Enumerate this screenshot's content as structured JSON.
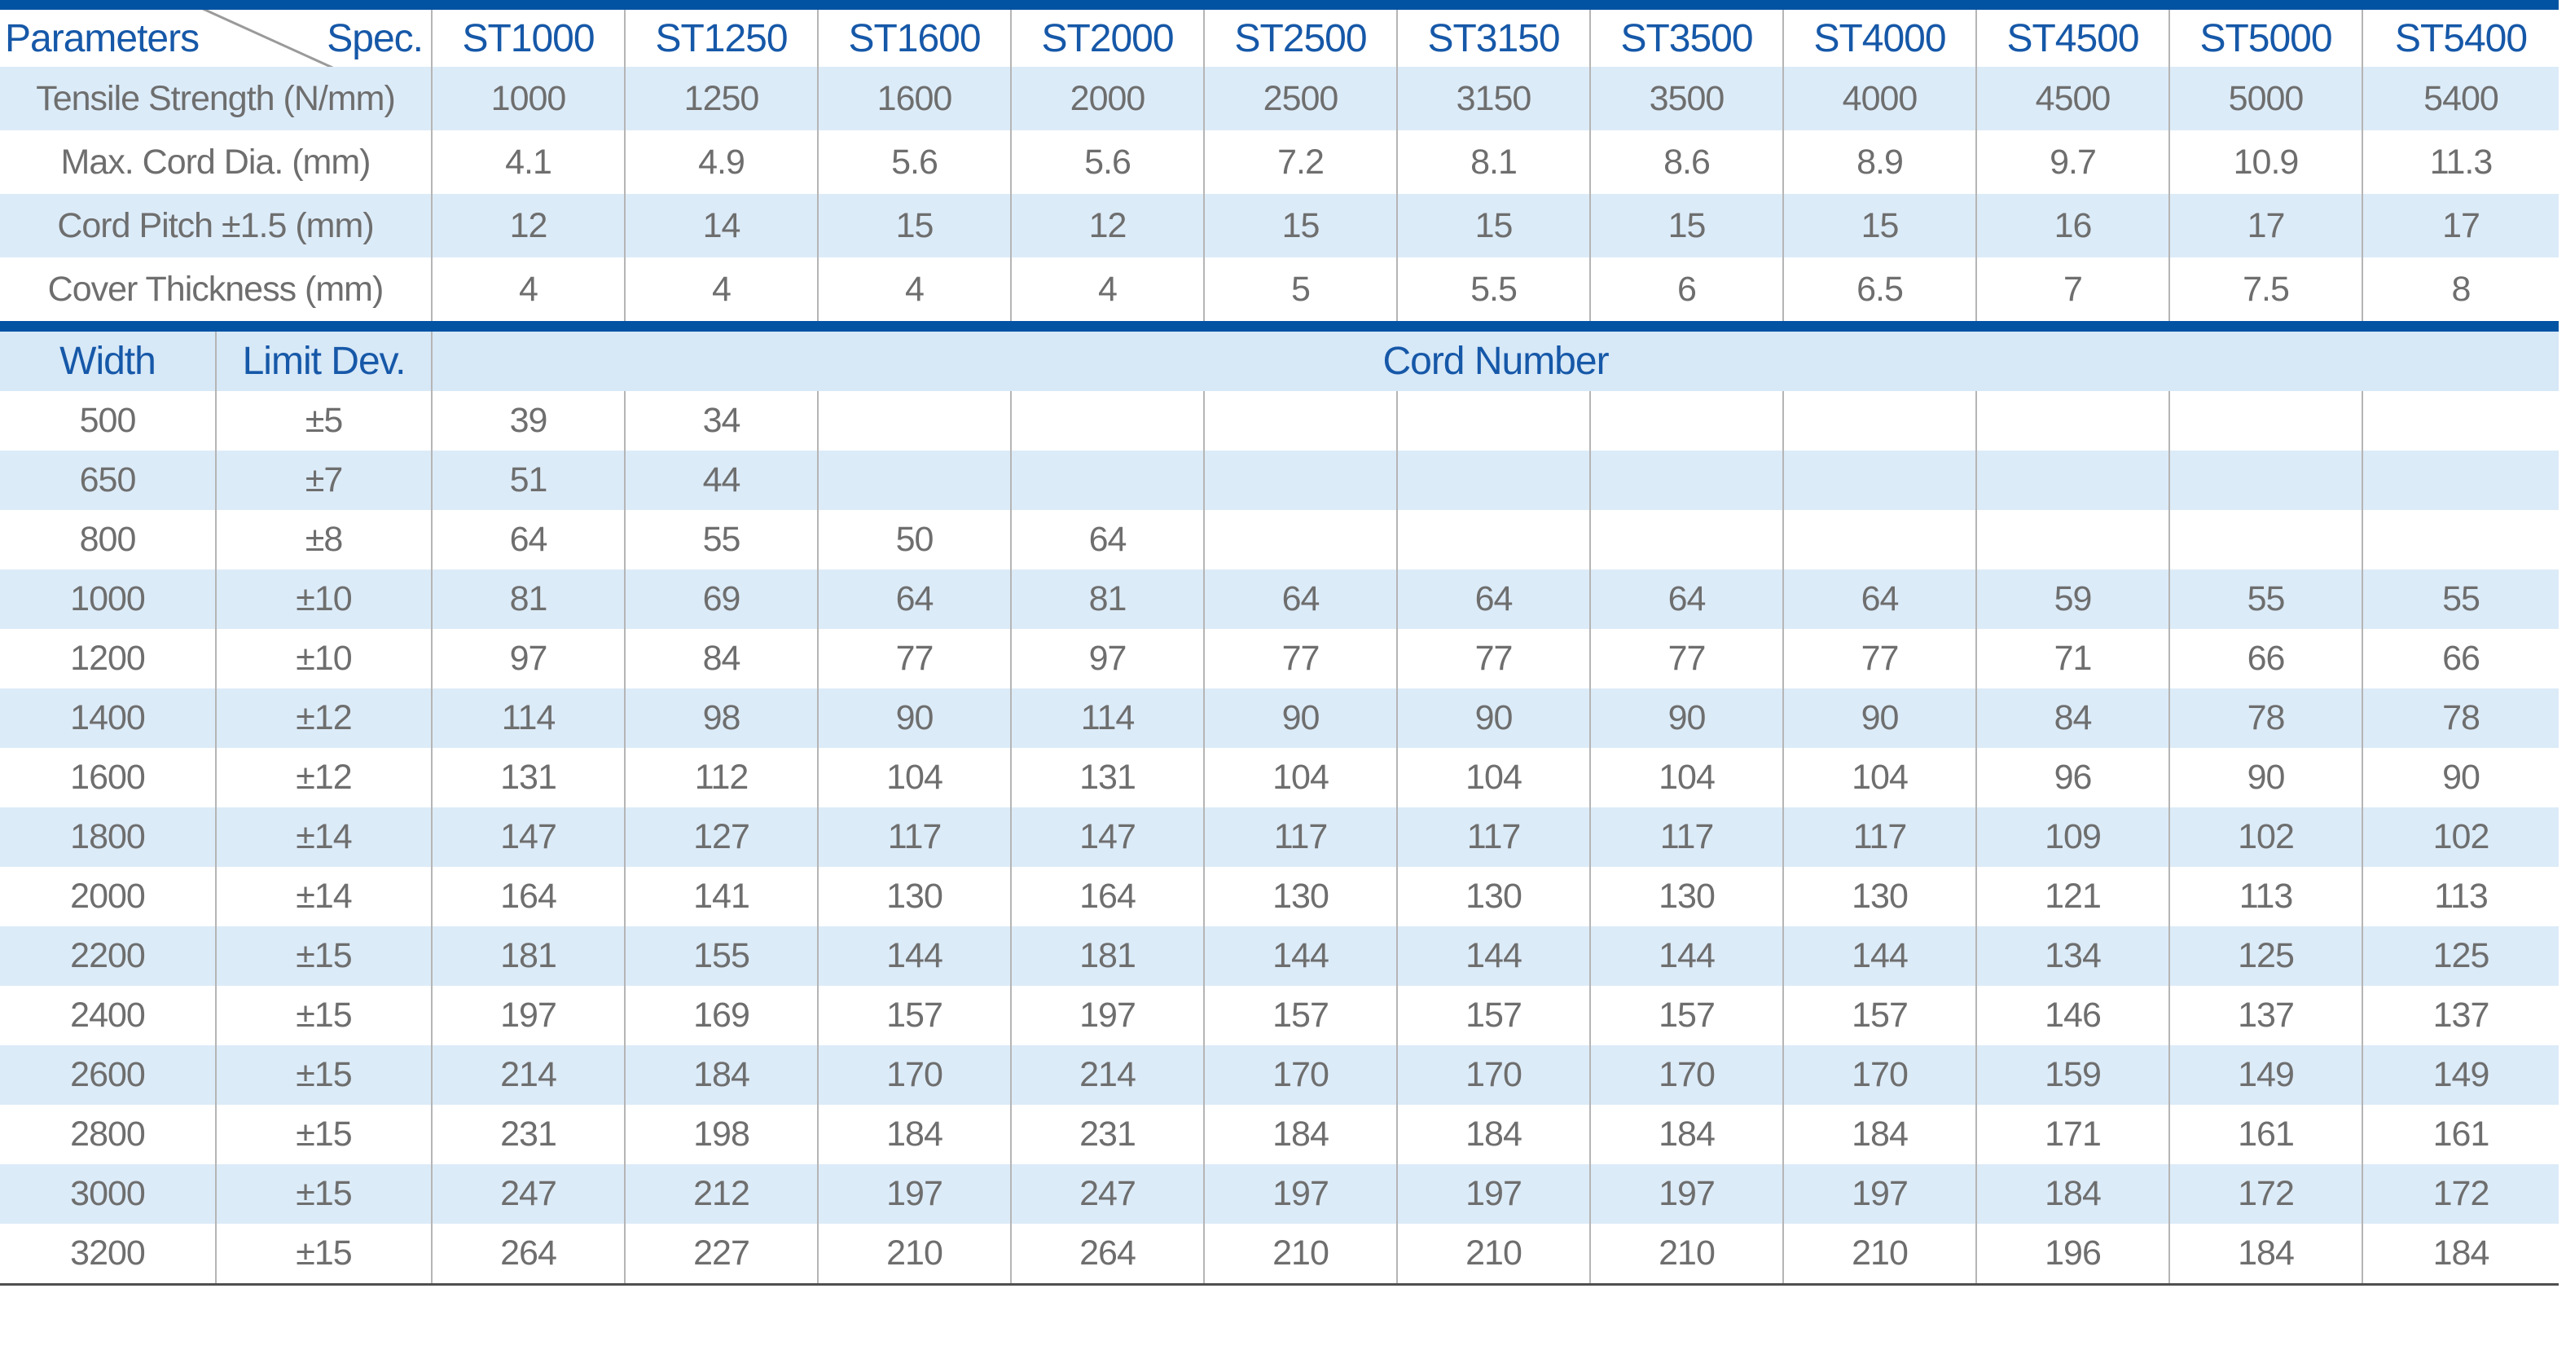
{
  "colors": {
    "bar_blue": "#0353a3",
    "header_text_blue": "#1658a8",
    "row_light_blue": "#dcebf8",
    "body_text_gray": "#6e6e6e",
    "grid_line_gray": "#b5b5b5",
    "bottom_border_gray": "#4f4f4f"
  },
  "spec_table": {
    "corner": {
      "left_label": "Parameters",
      "right_label": "Spec."
    },
    "columns": [
      "ST1000",
      "ST1250",
      "ST1600",
      "ST2000",
      "ST2500",
      "ST3150",
      "ST3500",
      "ST4000",
      "ST4500",
      "ST5000",
      "ST5400"
    ],
    "rows": [
      {
        "label": "Tensile Strength (N/mm)",
        "values": [
          "1000",
          "1250",
          "1600",
          "2000",
          "2500",
          "3150",
          "3500",
          "4000",
          "4500",
          "5000",
          "5400"
        ]
      },
      {
        "label": "Max. Cord Dia. (mm)",
        "values": [
          "4.1",
          "4.9",
          "5.6",
          "5.6",
          "7.2",
          "8.1",
          "8.6",
          "8.9",
          "9.7",
          "10.9",
          "11.3"
        ]
      },
      {
        "label": "Cord Pitch ±1.5 (mm)",
        "values": [
          "12",
          "14",
          "15",
          "12",
          "15",
          "15",
          "15",
          "15",
          "16",
          "17",
          "17"
        ]
      },
      {
        "label": "Cover Thickness (mm)",
        "values": [
          "4",
          "4",
          "4",
          "4",
          "5",
          "5.5",
          "6",
          "6.5",
          "7",
          "7.5",
          "8"
        ]
      }
    ]
  },
  "cord_table": {
    "headers": {
      "width": "Width",
      "limit_dev": "Limit Dev.",
      "cord_number": "Cord Number"
    },
    "rows": [
      {
        "width": "500",
        "limit_dev": "±5",
        "values": [
          "39",
          "34",
          "",
          "",
          "",
          "",
          "",
          "",
          "",
          "",
          ""
        ]
      },
      {
        "width": "650",
        "limit_dev": "±7",
        "values": [
          "51",
          "44",
          "",
          "",
          "",
          "",
          "",
          "",
          "",
          "",
          ""
        ]
      },
      {
        "width": "800",
        "limit_dev": "±8",
        "values": [
          "64",
          "55",
          "50",
          "64",
          "",
          "",
          "",
          "",
          "",
          "",
          ""
        ]
      },
      {
        "width": "1000",
        "limit_dev": "±10",
        "values": [
          "81",
          "69",
          "64",
          "81",
          "64",
          "64",
          "64",
          "64",
          "59",
          "55",
          "55"
        ]
      },
      {
        "width": "1200",
        "limit_dev": "±10",
        "values": [
          "97",
          "84",
          "77",
          "97",
          "77",
          "77",
          "77",
          "77",
          "71",
          "66",
          "66"
        ]
      },
      {
        "width": "1400",
        "limit_dev": "±12",
        "values": [
          "114",
          "98",
          "90",
          "114",
          "90",
          "90",
          "90",
          "90",
          "84",
          "78",
          "78"
        ]
      },
      {
        "width": "1600",
        "limit_dev": "±12",
        "values": [
          "131",
          "112",
          "104",
          "131",
          "104",
          "104",
          "104",
          "104",
          "96",
          "90",
          "90"
        ]
      },
      {
        "width": "1800",
        "limit_dev": "±14",
        "values": [
          "147",
          "127",
          "117",
          "147",
          "117",
          "117",
          "117",
          "117",
          "109",
          "102",
          "102"
        ]
      },
      {
        "width": "2000",
        "limit_dev": "±14",
        "values": [
          "164",
          "141",
          "130",
          "164",
          "130",
          "130",
          "130",
          "130",
          "121",
          "113",
          "113"
        ]
      },
      {
        "width": "2200",
        "limit_dev": "±15",
        "values": [
          "181",
          "155",
          "144",
          "181",
          "144",
          "144",
          "144",
          "144",
          "134",
          "125",
          "125"
        ]
      },
      {
        "width": "2400",
        "limit_dev": "±15",
        "values": [
          "197",
          "169",
          "157",
          "197",
          "157",
          "157",
          "157",
          "157",
          "146",
          "137",
          "137"
        ]
      },
      {
        "width": "2600",
        "limit_dev": "±15",
        "values": [
          "214",
          "184",
          "170",
          "214",
          "170",
          "170",
          "170",
          "170",
          "159",
          "149",
          "149"
        ]
      },
      {
        "width": "2800",
        "limit_dev": "±15",
        "values": [
          "231",
          "198",
          "184",
          "231",
          "184",
          "184",
          "184",
          "184",
          "171",
          "161",
          "161"
        ]
      },
      {
        "width": "3000",
        "limit_dev": "±15",
        "values": [
          "247",
          "212",
          "197",
          "247",
          "197",
          "197",
          "197",
          "197",
          "184",
          "172",
          "172"
        ]
      },
      {
        "width": "3200",
        "limit_dev": "±15",
        "values": [
          "264",
          "227",
          "210",
          "264",
          "210",
          "210",
          "210",
          "210",
          "196",
          "184",
          "184"
        ]
      }
    ]
  }
}
